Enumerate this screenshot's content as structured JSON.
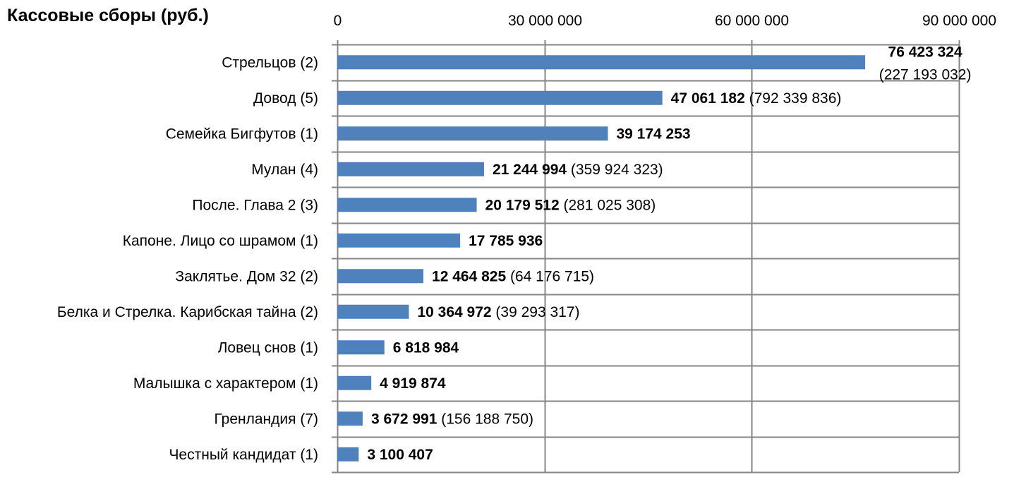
{
  "chart_data": {
    "type": "bar",
    "orientation": "horizontal",
    "title": "Кассовые сборы (руб.)",
    "xlabel": "",
    "ylabel": "",
    "xlim": [
      0,
      90000000
    ],
    "x_ticks": [
      0,
      30000000,
      60000000,
      90000000
    ],
    "x_tick_labels": [
      "0",
      "30 000 000",
      "60 000 000",
      "90 000 000"
    ],
    "grid": true,
    "bar_color": "#4F81BD",
    "grid_color": "#868686",
    "categories": [
      "Стрельцов (2)",
      "Довод (5)",
      "Семейка Бигфутов (1)",
      "Мулан (4)",
      "После. Глава 2 (3)",
      "Капоне. Лицо со шрамом (1)",
      "Заклятье. Дом 32 (2)",
      "Белка и Стрелка. Карибская тайна (2)",
      "Ловец снов (1)",
      "Малышка с характером (1)",
      "Гренландия (7)",
      "Честный кандидат (1)"
    ],
    "values": [
      76423324,
      47061182,
      39174253,
      21244994,
      20179512,
      17785936,
      12464825,
      10364972,
      6818984,
      4919874,
      3672991,
      3100407
    ],
    "value_labels": [
      "76 423 324",
      "47 061 182",
      "39 174 253",
      "21 244 994",
      "20 179 512",
      "17 785 936",
      "12 464 825",
      "10 364 972",
      "6 818 984",
      "4 919 874",
      "3 672 991",
      "3 100 407"
    ],
    "total_labels": [
      "(227 193 032)",
      "(792 339 836)",
      "",
      "(359 924 323)",
      "(281 025 308)",
      "",
      "(64 176 715)",
      "(39 293 317)",
      "",
      "",
      "(156 188 750)",
      ""
    ]
  }
}
